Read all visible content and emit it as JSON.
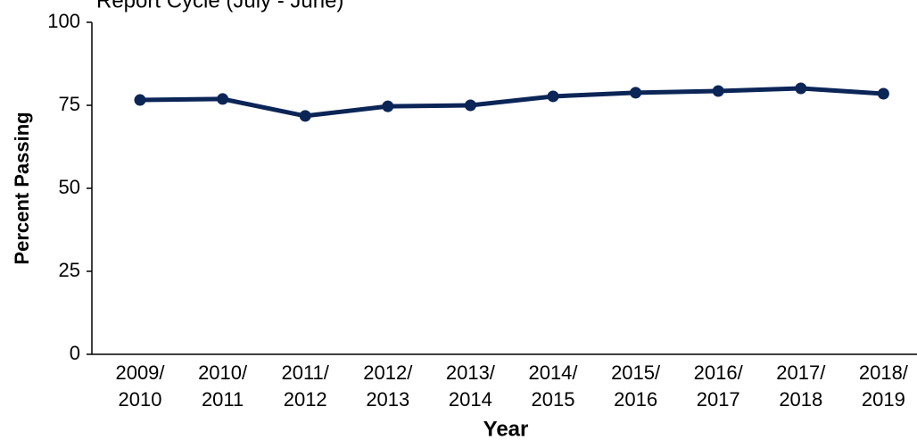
{
  "chart_data": {
    "type": "line",
    "title": "Report Cycle (July - June)",
    "x_label": "Year",
    "y_label": "Percent Passing",
    "categories": [
      "2009/ 2010",
      "2010/ 2011",
      "2011/ 2012",
      "2012/ 2013",
      "2013/ 2014",
      "2014/ 2015",
      "2015/ 2016",
      "2016/ 2017",
      "2017/ 2018",
      "2018/ 2019"
    ],
    "series": [
      {
        "name": "Percent Passing",
        "color": "#0b2557",
        "values": [
          76.6,
          76.9,
          71.8,
          74.7,
          75.0,
          77.7,
          78.8,
          79.3,
          80.1,
          78.5
        ]
      }
    ],
    "ylim": [
      0,
      100
    ],
    "yticks": [
      0,
      25,
      50,
      75,
      100
    ],
    "grid": false
  }
}
